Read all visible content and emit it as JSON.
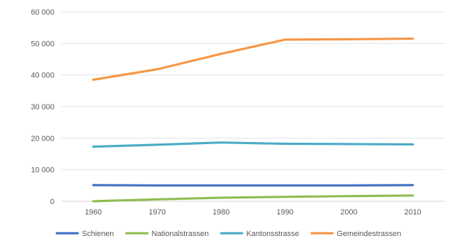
{
  "chart_data": {
    "type": "line",
    "title": "",
    "xlabel": "",
    "ylabel": "",
    "categories": [
      "1960",
      "1970",
      "1980",
      "1990",
      "2000",
      "2010"
    ],
    "ylim": [
      0,
      60000
    ],
    "yticks": [
      0,
      10000,
      20000,
      30000,
      40000,
      50000,
      60000
    ],
    "ytick_labels": [
      "0",
      "10 000",
      "20 000",
      "30 000",
      "40 000",
      "50 000",
      "60 000"
    ],
    "grid": true,
    "legend_position": "bottom",
    "series": [
      {
        "name": "Schienen",
        "color": "#4472C4",
        "values": [
          5100,
          5000,
          5000,
          5000,
          5000,
          5100
        ]
      },
      {
        "name": "Nationalstrassen",
        "color": "#8FBC4F",
        "values": [
          0,
          600,
          1100,
          1400,
          1600,
          1800
        ]
      },
      {
        "name": "Kantonsstrasse",
        "color": "#4BACC6",
        "values": [
          17300,
          17900,
          18600,
          18200,
          18100,
          18000
        ]
      },
      {
        "name": "Gemeindestrassen",
        "color": "#F79646",
        "values": [
          38500,
          41800,
          46700,
          51200,
          51300,
          51500
        ]
      }
    ]
  }
}
